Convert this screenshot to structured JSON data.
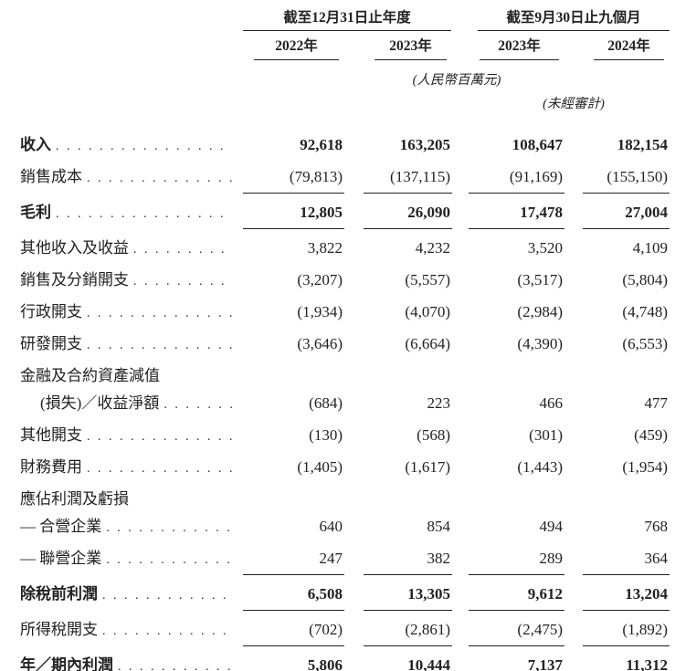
{
  "header": {
    "group1": {
      "title": "截至12月31日止年度",
      "years": [
        "2022年",
        "2023年"
      ]
    },
    "group2": {
      "title": "截至9月30日止九個月",
      "years": [
        "2023年",
        "2024年"
      ]
    },
    "currency_note": "(人民幣百萬元)",
    "unaudited_note": "(未經審計)"
  },
  "table": {
    "rows": [
      {
        "label": "收入",
        "bold": true,
        "dots": true,
        "values": [
          "92,618",
          "163,205",
          "108,647",
          "182,154"
        ],
        "rule": "none"
      },
      {
        "label": "銷售成本",
        "bold": false,
        "dots": true,
        "values": [
          "(79,813)",
          "(137,115)",
          "(91,169)",
          "(155,150)"
        ],
        "rule": "single"
      },
      {
        "label": "毛利",
        "bold": true,
        "dots": true,
        "values": [
          "12,805",
          "26,090",
          "17,478",
          "27,004"
        ],
        "rule": "single"
      },
      {
        "label": "其他收入及收益",
        "bold": false,
        "dots": true,
        "values": [
          "3,822",
          "4,232",
          "3,520",
          "4,109"
        ],
        "rule": "none"
      },
      {
        "label": "銷售及分銷開支",
        "bold": false,
        "dots": true,
        "values": [
          "(3,207)",
          "(5,557)",
          "(3,517)",
          "(5,804)"
        ],
        "rule": "none"
      },
      {
        "label": "行政開支",
        "bold": false,
        "dots": true,
        "values": [
          "(1,934)",
          "(4,070)",
          "(2,984)",
          "(4,748)"
        ],
        "rule": "none"
      },
      {
        "label": "研發開支",
        "bold": false,
        "dots": true,
        "values": [
          "(3,646)",
          "(6,664)",
          "(4,390)",
          "(6,553)"
        ],
        "rule": "none"
      },
      {
        "label": "金融及合約資產減值",
        "bold": false,
        "dots": false,
        "values": [
          "",
          "",
          "",
          ""
        ],
        "rule": "none",
        "header_only": true
      },
      {
        "label": "(損失)／收益淨額",
        "bold": false,
        "dots": true,
        "values": [
          "(684)",
          "223",
          "466",
          "477"
        ],
        "rule": "none",
        "indent": true
      },
      {
        "label": "其他開支",
        "bold": false,
        "dots": true,
        "values": [
          "(130)",
          "(568)",
          "(301)",
          "(459)"
        ],
        "rule": "none"
      },
      {
        "label": "財務費用",
        "bold": false,
        "dots": true,
        "values": [
          "(1,405)",
          "(1,617)",
          "(1,443)",
          "(1,954)"
        ],
        "rule": "none"
      },
      {
        "label": "應佔利潤及虧損",
        "bold": false,
        "dots": false,
        "values": [
          "",
          "",
          "",
          ""
        ],
        "rule": "none",
        "header_only": true
      },
      {
        "label": "— 合營企業",
        "bold": false,
        "dots": true,
        "values": [
          "640",
          "854",
          "494",
          "768"
        ],
        "rule": "none"
      },
      {
        "label": "— 聯營企業",
        "bold": false,
        "dots": true,
        "values": [
          "247",
          "382",
          "289",
          "364"
        ],
        "rule": "single"
      },
      {
        "label": "除稅前利潤",
        "bold": true,
        "dots": true,
        "values": [
          "6,508",
          "13,305",
          "9,612",
          "13,204"
        ],
        "rule": "single"
      },
      {
        "label": "所得稅開支",
        "bold": false,
        "dots": true,
        "values": [
          "(702)",
          "(2,861)",
          "(2,475)",
          "(1,892)"
        ],
        "rule": "single"
      },
      {
        "label": "年／期內利潤",
        "bold": true,
        "dots": true,
        "values": [
          "5,806",
          "10,444",
          "7,137",
          "11,312"
        ],
        "rule": "double"
      }
    ]
  }
}
